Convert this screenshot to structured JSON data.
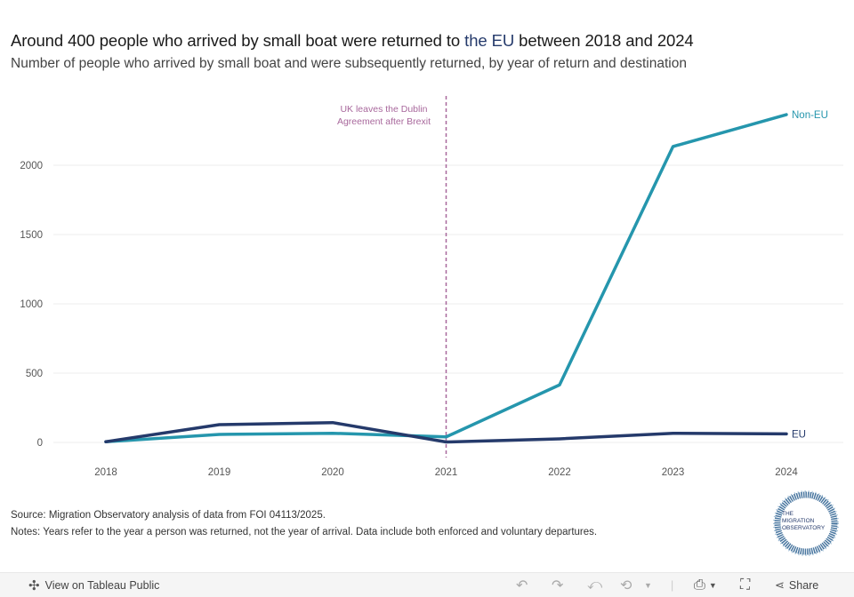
{
  "header": {
    "title_before": "Around 400 people who arrived by small boat were returned to ",
    "title_highlight": "the EU",
    "title_after": " between 2018 and 2024",
    "subtitle": "Number of people who arrived by small boat and were subsequently returned, by year of return and destination"
  },
  "colors": {
    "non_eu": "#2596ad",
    "eu": "#253a6b",
    "annotation": "#a8689c",
    "grid": "#eeeeee"
  },
  "chart_data": {
    "type": "line",
    "title": "Around 400 people who arrived by small boat were returned to the EU between 2018 and 2024",
    "subtitle": "Number of people who arrived by small boat and were subsequently returned, by year of return and destination",
    "xlabel": "",
    "ylabel": "",
    "x": [
      "2018",
      "2019",
      "2020",
      "2021",
      "2022",
      "2023",
      "2024"
    ],
    "yticks": [
      "0",
      "500",
      "1000",
      "1500",
      "2000"
    ],
    "ylim": [
      0,
      2400
    ],
    "grid": true,
    "series": [
      {
        "name": "Non-EU",
        "values": [
          5,
          58,
          66,
          40,
          415,
          2135,
          2365
        ]
      },
      {
        "name": "EU",
        "values": [
          5,
          128,
          143,
          3,
          26,
          66,
          62
        ]
      }
    ],
    "annotations": [
      {
        "x": "2021",
        "type": "vertical-dashed-line",
        "text_lines": [
          "UK leaves the Dublin",
          "Agreement after Brexit"
        ]
      }
    ],
    "legend": "inline-end-labels"
  },
  "footer": {
    "source": "Source: Migration Observatory analysis of data from FOI 04113/2025.",
    "notes": "Notes: Years refer to the year a person was returned, not the year of arrival. Data include both enforced and voluntary departures.",
    "logo_lines": [
      "THE",
      "MIGRATION",
      "OBSERVATORY"
    ]
  },
  "toolbar": {
    "view_label": "View on Tableau Public",
    "share_label": "Share",
    "icons": [
      "tableau-logo-icon",
      "undo-icon",
      "redo-icon",
      "revert-icon",
      "refresh-icon",
      "download-icon",
      "fullscreen-icon",
      "share-icon"
    ]
  }
}
